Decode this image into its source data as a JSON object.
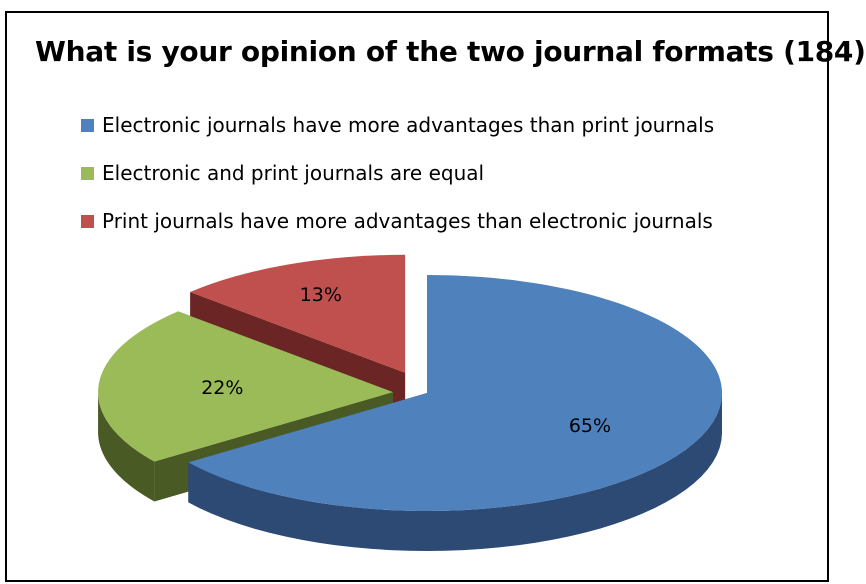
{
  "chart_data": {
    "type": "pie",
    "title": "What is your opinion of the two journal formats (184)",
    "legend_position": "top",
    "series": [
      {
        "name": "Electronic journals have more advantages than print journals",
        "value": 65,
        "label": "65%",
        "color": "#4f81bd",
        "side_color": "#2c4a74"
      },
      {
        "name": "Electronic and print journals are equal",
        "value": 22,
        "label": "22%",
        "color": "#9bbb59",
        "side_color": "#4a5a25"
      },
      {
        "name": "Print journals have more advantages than electronic journals",
        "value": 13,
        "label": "13%",
        "color": "#c0504d",
        "side_color": "#6a2524"
      }
    ]
  }
}
